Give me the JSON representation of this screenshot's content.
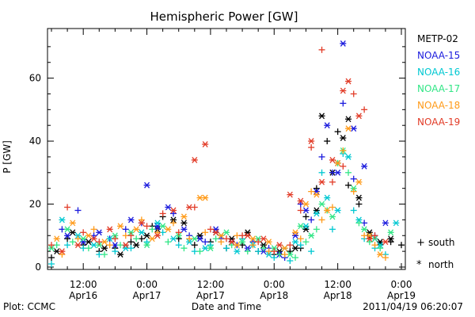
{
  "chart_data": {
    "type": "scatter",
    "title": "Hemispheric Power [GW]",
    "ylabel": "P [GW]",
    "xlabel": "Date and Time",
    "ylim": [
      0,
      75
    ],
    "yticks": [
      0,
      20,
      40,
      60
    ],
    "xlim": [
      0,
      66
    ],
    "xticks": [
      {
        "x": 6,
        "line1": "12:00",
        "line2": "Apr16"
      },
      {
        "x": 18,
        "line1": "0:00",
        "line2": "Apr17"
      },
      {
        "x": 30,
        "line1": "12:00",
        "line2": "Apr17"
      },
      {
        "x": 42,
        "line1": "0:00",
        "line2": "Apr18"
      },
      {
        "x": 54,
        "line1": "12:00",
        "line2": "Apr18"
      },
      {
        "x": 66,
        "line1": "0:00",
        "line2": "Apr19"
      }
    ],
    "legend_placement": "right",
    "marker_legend": [
      {
        "symbol": "+",
        "label": "south"
      },
      {
        "symbol": "*",
        "label": "north"
      }
    ],
    "series": [
      {
        "name": "METP-02",
        "color": "#000000",
        "south": [
          [
            0,
            3
          ],
          [
            3,
            9
          ],
          [
            6,
            7
          ],
          [
            9,
            5
          ],
          [
            12,
            6
          ],
          [
            15,
            8
          ],
          [
            17,
            9
          ],
          [
            19,
            13
          ],
          [
            21,
            16
          ],
          [
            24,
            9
          ],
          [
            27,
            7
          ],
          [
            30,
            8
          ],
          [
            33,
            6
          ],
          [
            36,
            7
          ],
          [
            39,
            5
          ],
          [
            42,
            4
          ],
          [
            45,
            5
          ],
          [
            47,
            6
          ],
          [
            48,
            16
          ],
          [
            50,
            25
          ],
          [
            52,
            40
          ],
          [
            54,
            43
          ],
          [
            56,
            26
          ],
          [
            58,
            20
          ],
          [
            60,
            9
          ],
          [
            62,
            7
          ],
          [
            64,
            8
          ],
          [
            66,
            7
          ]
        ],
        "north": [
          [
            1,
            5
          ],
          [
            4,
            11
          ],
          [
            7,
            8
          ],
          [
            10,
            6
          ],
          [
            13,
            4
          ],
          [
            16,
            7
          ],
          [
            18,
            10
          ],
          [
            20,
            12
          ],
          [
            23,
            15
          ],
          [
            25,
            14
          ],
          [
            28,
            10
          ],
          [
            31,
            11
          ],
          [
            34,
            9
          ],
          [
            37,
            11
          ],
          [
            40,
            7
          ],
          [
            43,
            5
          ],
          [
            46,
            6
          ],
          [
            48,
            12
          ],
          [
            50,
            18
          ],
          [
            51,
            48
          ],
          [
            53,
            30
          ],
          [
            54,
            33
          ],
          [
            55,
            41
          ],
          [
            56,
            47
          ],
          [
            58,
            22
          ],
          [
            60,
            11
          ],
          [
            62,
            8
          ],
          [
            64,
            9
          ]
        ]
      },
      {
        "name": "NOAA-15",
        "color": "#1b1bdd",
        "south": [
          [
            2,
            12
          ],
          [
            5,
            18
          ],
          [
            8,
            10
          ],
          [
            11,
            9
          ],
          [
            14,
            12
          ],
          [
            17,
            14
          ],
          [
            20,
            12
          ],
          [
            23,
            17
          ],
          [
            26,
            10
          ],
          [
            29,
            8
          ],
          [
            32,
            9
          ],
          [
            35,
            7
          ],
          [
            38,
            8
          ],
          [
            41,
            6
          ],
          [
            44,
            3
          ],
          [
            47,
            20
          ],
          [
            49,
            15
          ],
          [
            51,
            35
          ],
          [
            53,
            30
          ],
          [
            55,
            52
          ],
          [
            57,
            28
          ],
          [
            59,
            14
          ],
          [
            61,
            10
          ]
        ],
        "north": [
          [
            3,
            10
          ],
          [
            6,
            8
          ],
          [
            9,
            11
          ],
          [
            12,
            7
          ],
          [
            15,
            15
          ],
          [
            18,
            26
          ],
          [
            20,
            13
          ],
          [
            22,
            19
          ],
          [
            25,
            12
          ],
          [
            28,
            9
          ],
          [
            31,
            12
          ],
          [
            34,
            8
          ],
          [
            37,
            6
          ],
          [
            40,
            5
          ],
          [
            43,
            4
          ],
          [
            46,
            10
          ],
          [
            48,
            18
          ],
          [
            50,
            24
          ],
          [
            52,
            45
          ],
          [
            54,
            30
          ],
          [
            55,
            71
          ],
          [
            57,
            44
          ],
          [
            59,
            32
          ],
          [
            61,
            9
          ],
          [
            63,
            14
          ]
        ]
      },
      {
        "name": "NOAA-16",
        "color": "#00c8d2",
        "south": [
          [
            0,
            1
          ],
          [
            3,
            7
          ],
          [
            6,
            6
          ],
          [
            9,
            4
          ],
          [
            12,
            5
          ],
          [
            15,
            6
          ],
          [
            18,
            8
          ],
          [
            21,
            11
          ],
          [
            24,
            7
          ],
          [
            27,
            5
          ],
          [
            30,
            7
          ],
          [
            33,
            6
          ],
          [
            36,
            9
          ],
          [
            39,
            5
          ],
          [
            42,
            3
          ],
          [
            45,
            2
          ],
          [
            47,
            7
          ],
          [
            49,
            5
          ],
          [
            51,
            30
          ],
          [
            53,
            12
          ],
          [
            55,
            36
          ],
          [
            57,
            18
          ],
          [
            59,
            9
          ],
          [
            61,
            6
          ],
          [
            63,
            4
          ]
        ],
        "north": [
          [
            2,
            15
          ],
          [
            5,
            10
          ],
          [
            8,
            7
          ],
          [
            11,
            9
          ],
          [
            14,
            6
          ],
          [
            17,
            11
          ],
          [
            20,
            14
          ],
          [
            23,
            9
          ],
          [
            26,
            8
          ],
          [
            29,
            6
          ],
          [
            32,
            10
          ],
          [
            35,
            5
          ],
          [
            38,
            7
          ],
          [
            41,
            4
          ],
          [
            44,
            6
          ],
          [
            46,
            8
          ],
          [
            48,
            13
          ],
          [
            50,
            17
          ],
          [
            52,
            22
          ],
          [
            54,
            18
          ],
          [
            56,
            35
          ],
          [
            58,
            15
          ],
          [
            60,
            10
          ],
          [
            62,
            7
          ],
          [
            65,
            14
          ]
        ]
      },
      {
        "name": "NOAA-17",
        "color": "#32e686",
        "south": [
          [
            1,
            7
          ],
          [
            4,
            8
          ],
          [
            7,
            6
          ],
          [
            10,
            4
          ],
          [
            13,
            7
          ],
          [
            16,
            9
          ],
          [
            19,
            12
          ],
          [
            22,
            8
          ],
          [
            25,
            6
          ],
          [
            28,
            5
          ],
          [
            31,
            9
          ],
          [
            34,
            7
          ],
          [
            37,
            5
          ],
          [
            40,
            6
          ],
          [
            43,
            4
          ],
          [
            46,
            3
          ],
          [
            48,
            8
          ],
          [
            50,
            12
          ],
          [
            52,
            18
          ],
          [
            54,
            33
          ],
          [
            56,
            30
          ],
          [
            58,
            14
          ],
          [
            60,
            8
          ],
          [
            62,
            6
          ]
        ],
        "north": [
          [
            0,
            6
          ],
          [
            3,
            12
          ],
          [
            6,
            9
          ],
          [
            9,
            7
          ],
          [
            12,
            10
          ],
          [
            15,
            11
          ],
          [
            18,
            7
          ],
          [
            21,
            13
          ],
          [
            24,
            10
          ],
          [
            27,
            9
          ],
          [
            30,
            6
          ],
          [
            33,
            11
          ],
          [
            36,
            8
          ],
          [
            39,
            9
          ],
          [
            42,
            6
          ],
          [
            45,
            4
          ],
          [
            47,
            13
          ],
          [
            49,
            10
          ],
          [
            51,
            20
          ],
          [
            53,
            16
          ],
          [
            55,
            37
          ],
          [
            57,
            25
          ],
          [
            59,
            12
          ],
          [
            61,
            9
          ],
          [
            64,
            11
          ]
        ]
      },
      {
        "name": "NOAA-18",
        "color": "#ff9b1a",
        "south": [
          [
            2,
            4
          ],
          [
            5,
            9
          ],
          [
            8,
            12
          ],
          [
            11,
            7
          ],
          [
            14,
            10
          ],
          [
            17,
            15
          ],
          [
            20,
            11
          ],
          [
            23,
            14
          ],
          [
            26,
            9
          ],
          [
            29,
            11
          ],
          [
            32,
            8
          ],
          [
            35,
            10
          ],
          [
            38,
            7
          ],
          [
            41,
            5
          ],
          [
            44,
            4
          ],
          [
            47,
            9
          ],
          [
            49,
            24
          ],
          [
            51,
            15
          ],
          [
            53,
            19
          ],
          [
            55,
            37
          ],
          [
            57,
            24
          ],
          [
            59,
            10
          ],
          [
            61,
            7
          ],
          [
            63,
            3
          ]
        ],
        "north": [
          [
            1,
            9
          ],
          [
            4,
            14
          ],
          [
            7,
            10
          ],
          [
            10,
            8
          ],
          [
            13,
            13
          ],
          [
            16,
            12
          ],
          [
            19,
            9
          ],
          [
            22,
            12
          ],
          [
            25,
            16
          ],
          [
            28,
            22
          ],
          [
            29,
            22
          ],
          [
            32,
            10
          ],
          [
            35,
            7
          ],
          [
            38,
            9
          ],
          [
            41,
            8
          ],
          [
            44,
            6
          ],
          [
            46,
            11
          ],
          [
            48,
            20
          ],
          [
            50,
            23
          ],
          [
            52,
            18
          ],
          [
            54,
            33
          ],
          [
            56,
            44
          ],
          [
            58,
            27
          ],
          [
            60,
            10
          ],
          [
            62,
            4
          ]
        ]
      },
      {
        "name": "NOAA-19",
        "color": "#e23c28",
        "south": [
          [
            0,
            7
          ],
          [
            3,
            19
          ],
          [
            6,
            11
          ],
          [
            9,
            8
          ],
          [
            12,
            9
          ],
          [
            15,
            10
          ],
          [
            18,
            13
          ],
          [
            21,
            17
          ],
          [
            24,
            11
          ],
          [
            27,
            19
          ],
          [
            30,
            12
          ],
          [
            33,
            9
          ],
          [
            36,
            10
          ],
          [
            39,
            8
          ],
          [
            42,
            5
          ],
          [
            45,
            7
          ],
          [
            47,
            18
          ],
          [
            49,
            38
          ],
          [
            51,
            69
          ],
          [
            53,
            27
          ],
          [
            55,
            32
          ],
          [
            57,
            55
          ],
          [
            59,
            50
          ],
          [
            61,
            10
          ]
        ],
        "north": [
          [
            2,
            5
          ],
          [
            5,
            7
          ],
          [
            8,
            9
          ],
          [
            11,
            12
          ],
          [
            14,
            7
          ],
          [
            17,
            14
          ],
          [
            20,
            10
          ],
          [
            23,
            18
          ],
          [
            26,
            19
          ],
          [
            27,
            34
          ],
          [
            29,
            39
          ],
          [
            31,
            11
          ],
          [
            34,
            8
          ],
          [
            37,
            10
          ],
          [
            40,
            9
          ],
          [
            43,
            7
          ],
          [
            45,
            23
          ],
          [
            47,
            21
          ],
          [
            49,
            40
          ],
          [
            51,
            27
          ],
          [
            53,
            34
          ],
          [
            55,
            56
          ],
          [
            56,
            59
          ],
          [
            58,
            48
          ],
          [
            60,
            9
          ],
          [
            63,
            8
          ]
        ]
      }
    ]
  },
  "footer": {
    "plot_label": "Plot: CCMC",
    "timestamp": "2011/04/19 06:20:07"
  }
}
